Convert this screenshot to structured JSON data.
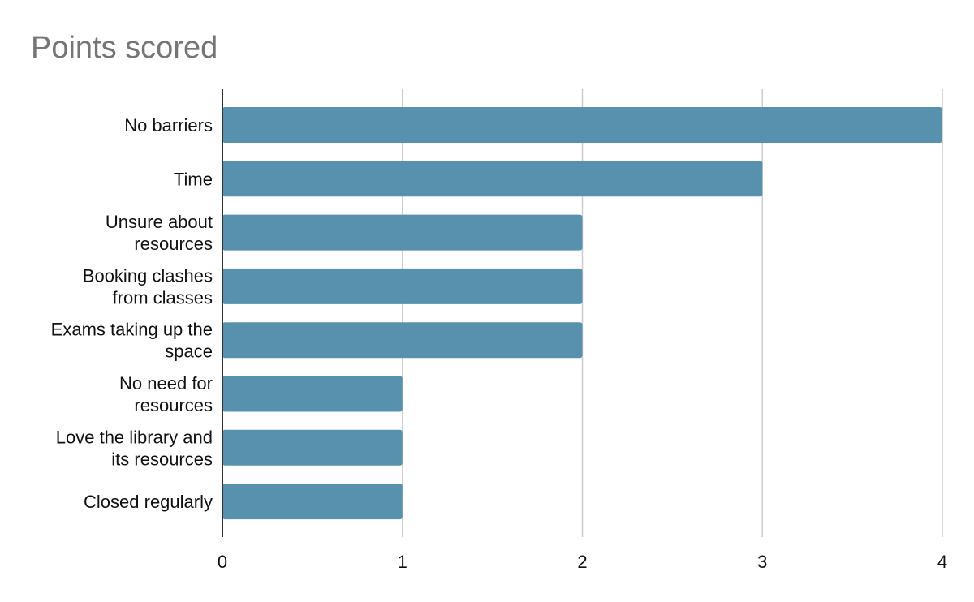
{
  "chart_data": {
    "type": "bar",
    "orientation": "horizontal",
    "title": "Points scored",
    "xlabel": "",
    "ylabel": "",
    "categories": [
      [
        "No barriers"
      ],
      [
        "Time"
      ],
      [
        "Unsure about",
        "resources"
      ],
      [
        "Booking clashes",
        "from classes"
      ],
      [
        "Exams taking up the",
        "space"
      ],
      [
        "No need for",
        "resources"
      ],
      [
        "Love the library and",
        "its resources"
      ],
      [
        "Closed regularly"
      ]
    ],
    "values": [
      4,
      3,
      2,
      2,
      2,
      1,
      1,
      1
    ],
    "xlim": [
      0,
      4
    ],
    "xticks": [
      "0",
      "1",
      "2",
      "3",
      "4"
    ],
    "grid": true,
    "legend": "none",
    "colors": {
      "bar": "#5891ae",
      "grid": "#cccccc",
      "axis": "#333333",
      "title": "#757575"
    }
  }
}
